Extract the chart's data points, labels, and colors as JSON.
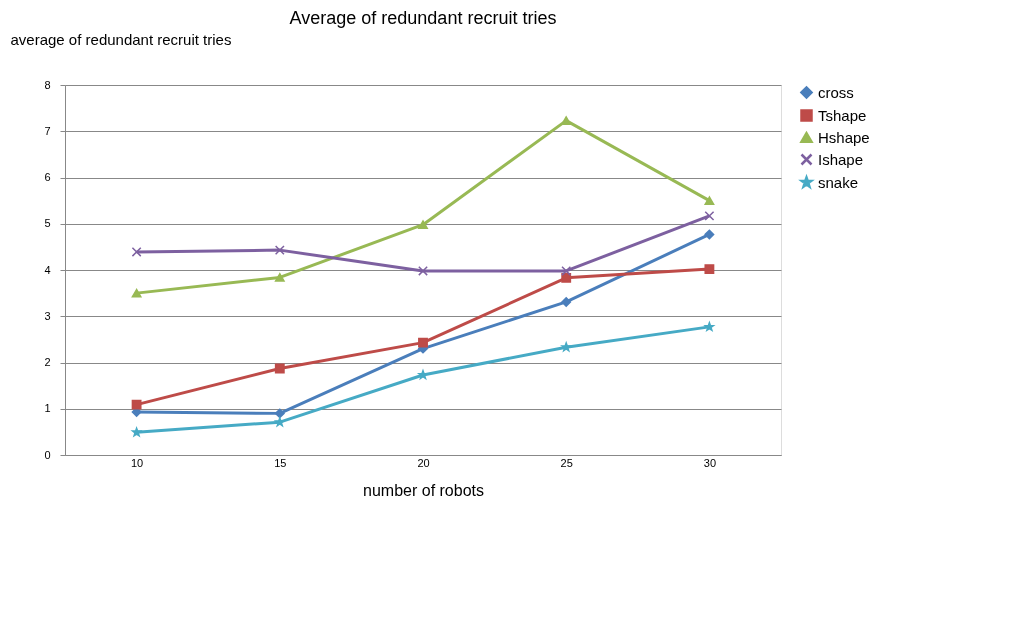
{
  "chart_data": {
    "type": "line",
    "title": "Average of  redundant recruit tries",
    "xlabel": "number of robots",
    "ylabel": "average of redundant recruit tries",
    "categories": [
      "10",
      "15",
      "20",
      "25",
      "30"
    ],
    "series": [
      {
        "name": "cross",
        "color": "#4a7ebb",
        "marker": "diamond",
        "values": [
          0.93,
          0.9,
          2.3,
          3.31,
          4.77
        ]
      },
      {
        "name": "Tshape",
        "color": "#be4b48",
        "marker": "square",
        "values": [
          1.09,
          1.87,
          2.43,
          3.83,
          4.02
        ]
      },
      {
        "name": "Hshape",
        "color": "#98b954",
        "marker": "triangle",
        "values": [
          3.5,
          3.84,
          4.98,
          7.23,
          5.5
        ]
      },
      {
        "name": "Ishape",
        "color": "#7d60a0",
        "marker": "cross",
        "values": [
          4.39,
          4.43,
          3.98,
          3.98,
          5.17
        ]
      },
      {
        "name": "snake",
        "color": "#46aac5",
        "marker": "star",
        "values": [
          0.49,
          0.71,
          1.73,
          2.33,
          2.77
        ]
      }
    ],
    "ylim": [
      0,
      8
    ],
    "yticks": [
      0,
      1,
      2,
      3,
      4,
      5,
      6,
      7,
      8
    ],
    "grid": "y",
    "legend": "right",
    "line_style": "solid"
  }
}
